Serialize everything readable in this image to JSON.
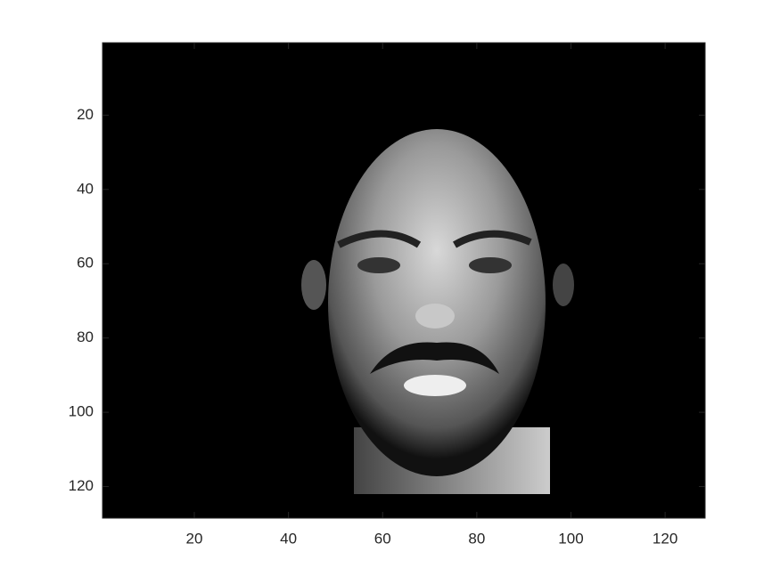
{
  "chart_data": {
    "type": "image",
    "xlim": [
      0.5,
      128.5
    ],
    "ylim": [
      0.5,
      128.5
    ],
    "y_reversed": true,
    "xticks": [
      20,
      40,
      60,
      80,
      100,
      120
    ],
    "yticks": [
      20,
      40,
      60,
      80,
      100,
      120
    ]
  }
}
